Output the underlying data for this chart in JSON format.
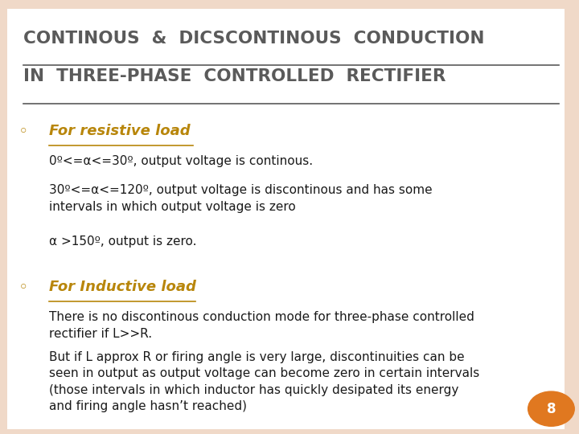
{
  "bg_color": "#f0d9c8",
  "slide_bg": "#ffffff",
  "title_line1": "CONTINOUS  &  DICSCONTINOUS  CONDUCTION",
  "title_line2": "IN  THREE-PHASE  CONTROLLED  RECTIFIER",
  "title_color": "#5a5a5a",
  "title_fontsize": 15.5,
  "bullet_color": "#b8860b",
  "bullet_symbol": "◦",
  "bullet1_heading": "For resistive load",
  "bullet1_heading_color": "#b8860b",
  "bullet1_heading_fontsize": 13,
  "bullet1_text1": "0º<=α<=30º, output voltage is continous.",
  "bullet1_text2": "30º<=α<=120º, output voltage is discontinous and has some\nintervals in which output voltage is zero",
  "bullet1_text3": "α >150º, output is zero.",
  "bullet2_heading": "For Inductive load",
  "bullet2_heading_color": "#b8860b",
  "bullet2_heading_fontsize": 13,
  "bullet2_text1": "There is no discontinous conduction mode for three-phase controlled\nrectifier if L>>R.",
  "bullet2_text2": "But if L approx R or firing angle is very large, discontinuities can be\nseen in output as output voltage can become zero in certain intervals\n(those intervals in which inductor has quickly desipated its energy\nand firing angle hasn’t reached)",
  "body_text_color": "#1a1a1a",
  "body_fontsize": 11,
  "page_num": "8",
  "page_circle_color": "#e07820",
  "page_text_color": "#ffffff"
}
